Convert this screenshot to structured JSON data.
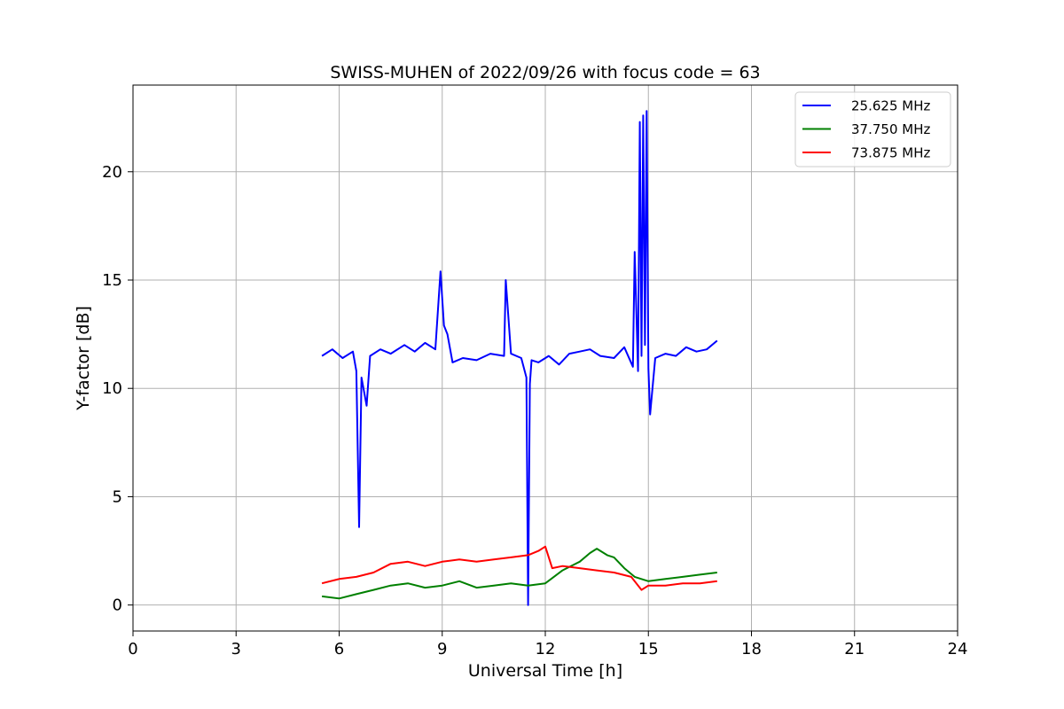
{
  "chart_data": {
    "type": "line",
    "title": "SWISS-MUHEN of 2022/09/26 with focus code = 63",
    "xlabel": "Universal Time [h]",
    "ylabel": "Y-factor [dB]",
    "xlim": [
      0,
      24
    ],
    "ylim": [
      -1.2,
      24.0
    ],
    "xticks": [
      "0",
      "3",
      "6",
      "9",
      "12",
      "15",
      "18",
      "21",
      "24"
    ],
    "yticks": [
      "0",
      "5",
      "10",
      "15",
      "20"
    ],
    "grid": true,
    "legend_position": "top-right",
    "series": [
      {
        "name": "25.625 MHz",
        "color": "#0000ff",
        "x": [
          5.5,
          5.8,
          6.1,
          6.4,
          6.5,
          6.58,
          6.65,
          6.8,
          6.9,
          7.2,
          7.5,
          7.9,
          8.2,
          8.5,
          8.8,
          8.95,
          9.05,
          9.15,
          9.3,
          9.6,
          10.0,
          10.4,
          10.8,
          10.85,
          11.0,
          11.3,
          11.45,
          11.5,
          11.55,
          11.6,
          11.8,
          12.1,
          12.4,
          12.7,
          13.0,
          13.3,
          13.6,
          14.0,
          14.3,
          14.55,
          14.6,
          14.7,
          14.75,
          14.8,
          14.85,
          14.9,
          14.95,
          15.0,
          15.05,
          15.2,
          15.5,
          15.8,
          16.1,
          16.4,
          16.7,
          17.0
        ],
        "y": [
          11.5,
          11.8,
          11.4,
          11.7,
          10.8,
          3.6,
          10.5,
          9.2,
          11.5,
          11.8,
          11.6,
          12.0,
          11.7,
          12.1,
          11.8,
          15.4,
          12.9,
          12.5,
          11.2,
          11.4,
          11.3,
          11.6,
          11.5,
          15.0,
          11.6,
          11.4,
          10.5,
          0.0,
          10.2,
          11.3,
          11.2,
          11.5,
          11.1,
          11.6,
          11.7,
          11.8,
          11.5,
          11.4,
          11.9,
          11.0,
          16.3,
          10.8,
          22.3,
          11.5,
          22.6,
          12.0,
          22.8,
          10.9,
          8.8,
          11.4,
          11.6,
          11.5,
          11.9,
          11.7,
          11.8,
          12.2
        ]
      },
      {
        "name": "37.750 MHz",
        "color": "#008000",
        "x": [
          5.5,
          6.0,
          6.5,
          7.0,
          7.5,
          8.0,
          8.5,
          9.0,
          9.5,
          10.0,
          10.5,
          11.0,
          11.5,
          12.0,
          12.5,
          13.0,
          13.3,
          13.5,
          13.8,
          14.0,
          14.3,
          14.6,
          15.0,
          15.5,
          16.0,
          16.5,
          17.0
        ],
        "y": [
          0.4,
          0.3,
          0.5,
          0.7,
          0.9,
          1.0,
          0.8,
          0.9,
          1.1,
          0.8,
          0.9,
          1.0,
          0.9,
          1.0,
          1.6,
          2.0,
          2.4,
          2.6,
          2.3,
          2.2,
          1.7,
          1.3,
          1.1,
          1.2,
          1.3,
          1.4,
          1.5
        ]
      },
      {
        "name": "73.875 MHz",
        "color": "#ff0000",
        "x": [
          5.5,
          6.0,
          6.5,
          7.0,
          7.5,
          8.0,
          8.5,
          9.0,
          9.5,
          10.0,
          10.5,
          11.0,
          11.5,
          11.8,
          12.0,
          12.2,
          12.5,
          13.0,
          13.5,
          14.0,
          14.5,
          14.8,
          15.0,
          15.5,
          16.0,
          16.5,
          17.0
        ],
        "y": [
          1.0,
          1.2,
          1.3,
          1.5,
          1.9,
          2.0,
          1.8,
          2.0,
          2.1,
          2.0,
          2.1,
          2.2,
          2.3,
          2.5,
          2.7,
          1.7,
          1.8,
          1.7,
          1.6,
          1.5,
          1.3,
          0.7,
          0.9,
          0.9,
          1.0,
          1.0,
          1.1
        ]
      }
    ]
  }
}
